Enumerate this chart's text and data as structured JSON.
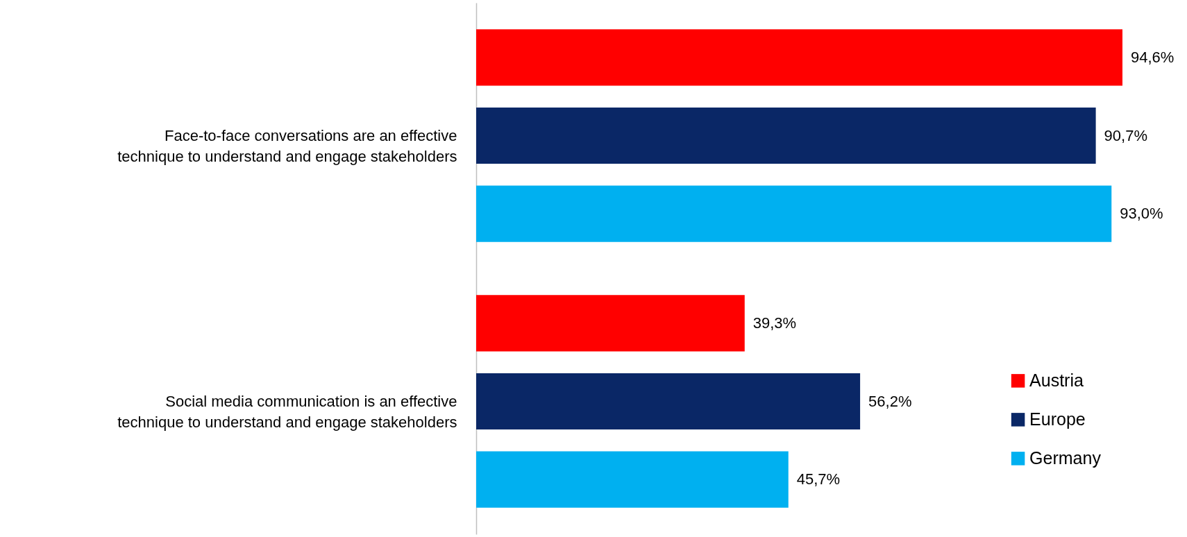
{
  "chart_data": {
    "type": "bar",
    "orientation": "horizontal",
    "categories": [
      "Face-to-face conversations are an effective technique to understand and engage stakeholders",
      "Social media communication is an effective technique to understand and engage stakeholders"
    ],
    "series": [
      {
        "name": "Austria",
        "color": "#ff0000",
        "values": [
          94.6,
          39.3
        ],
        "value_labels": [
          "94,6%",
          "39,3%"
        ]
      },
      {
        "name": "Europe",
        "color": "#0a2766",
        "values": [
          90.7,
          56.2
        ],
        "value_labels": [
          "90,7%",
          "56,2%"
        ]
      },
      {
        "name": "Germany",
        "color": "#00b0f0",
        "values": [
          93.0,
          45.7
        ],
        "value_labels": [
          "93,0%",
          "45,7%"
        ]
      }
    ],
    "grid": false,
    "legend": "bottom right"
  }
}
